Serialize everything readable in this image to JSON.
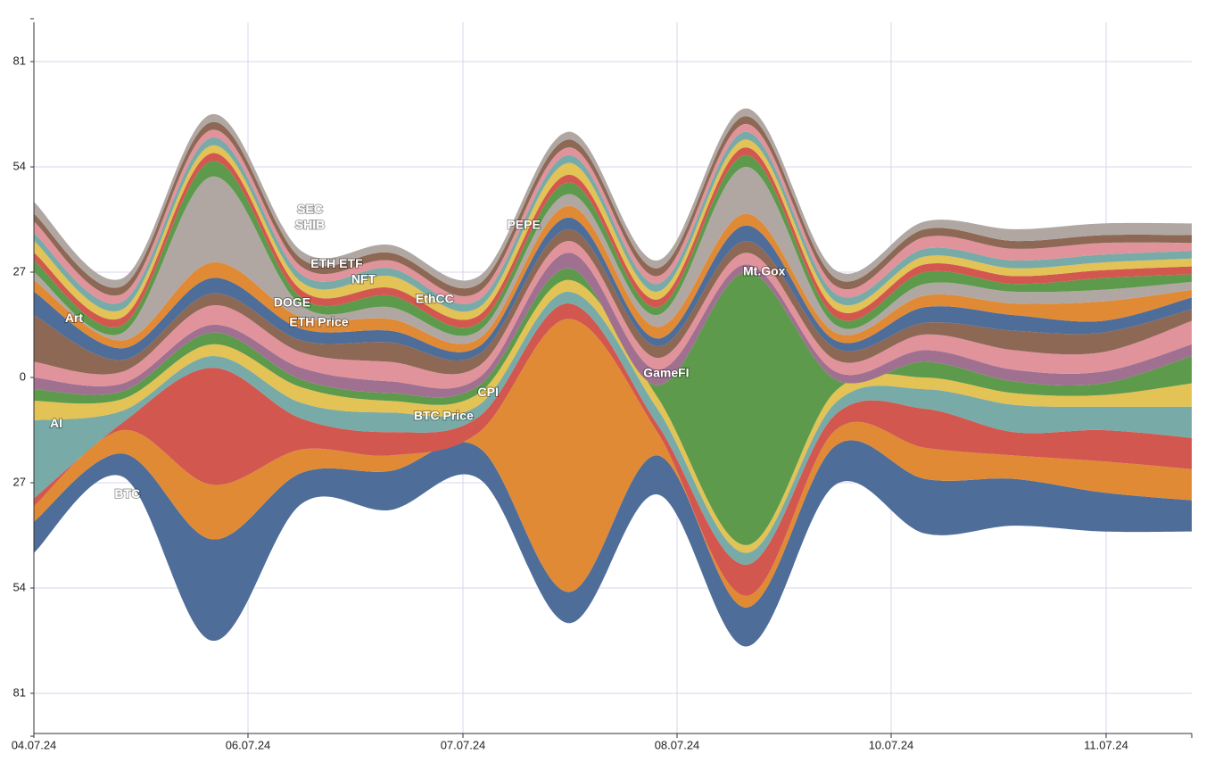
{
  "chart_data": {
    "type": "area",
    "subtype": "streamgraph",
    "title": "",
    "xlabel": "",
    "ylabel": "",
    "x": [
      "04.07.24 00:00",
      "04.07.24 12:00",
      "05.07.24 00:00",
      "05.07.24 12:00",
      "06.07.24 00:00",
      "06.07.24 12:00",
      "07.07.24 00:00",
      "07.07.24 12:00",
      "08.07.24 00:00",
      "08.07.24 12:00",
      "10.07.24 00:00",
      "10.07.24 12:00",
      "11.07.24 00:00",
      "11.07.24 12:00"
    ],
    "x_ticks": [
      "04.07.24",
      "06.07.24",
      "07.07.24",
      "08.07.24",
      "10.07.24",
      "11.07.24"
    ],
    "y_ticks": [
      81,
      54,
      27,
      0,
      27,
      54,
      81
    ],
    "ylim": [
      -92,
      92
    ],
    "grid": true,
    "series": [
      {
        "name": "BTC",
        "color": "#4e6d99",
        "values": [
          8,
          6,
          26,
          8,
          10,
          8,
          8,
          10,
          10,
          10,
          14,
          12,
          10,
          8
        ]
      },
      {
        "name": "BTC Price",
        "color": "#e08a36",
        "values": [
          4,
          6,
          14,
          6,
          4,
          4,
          70,
          6,
          3,
          4,
          8,
          6,
          8,
          8
        ]
      },
      {
        "name": "",
        "color": "#d2574f",
        "values": [
          2,
          2,
          30,
          8,
          6,
          4,
          4,
          2,
          8,
          4,
          10,
          6,
          8,
          8
        ]
      },
      {
        "name": "AI",
        "color": "#78aba7",
        "values": [
          20,
          3,
          3,
          4,
          5,
          3,
          3,
          4,
          3,
          3,
          5,
          7,
          6,
          8
        ]
      },
      {
        "name": "",
        "color": "#e3c256",
        "values": [
          5,
          3,
          3,
          4,
          3,
          3,
          3,
          3,
          2,
          3,
          3,
          3,
          3,
          6
        ]
      },
      {
        "name": "",
        "color": "#5d9a4b",
        "values": [
          3,
          2,
          3,
          2,
          2,
          2,
          3,
          3,
          70,
          3,
          4,
          3,
          3,
          7
        ]
      },
      {
        "name": "",
        "color": "#a07090",
        "values": [
          3,
          2,
          2,
          3,
          3,
          2,
          4,
          4,
          2,
          2,
          3,
          3,
          3,
          3
        ]
      },
      {
        "name": "",
        "color": "#e0939b",
        "values": [
          4,
          3,
          5,
          4,
          5,
          3,
          3,
          3,
          3,
          3,
          4,
          5,
          5,
          6
        ]
      },
      {
        "name": "Art",
        "color": "#8c6855",
        "values": [
          12,
          3,
          3,
          3,
          5,
          3,
          3,
          3,
          3,
          3,
          3,
          5,
          5,
          3
        ]
      },
      {
        "name": "",
        "color": "#4e6d99",
        "values": [
          6,
          3,
          4,
          3,
          3,
          2,
          3,
          2,
          4,
          2,
          4,
          4,
          3,
          3
        ]
      },
      {
        "name": "",
        "color": "#e08a36",
        "values": [
          3,
          2,
          4,
          3,
          3,
          2,
          3,
          3,
          3,
          2,
          3,
          3,
          5,
          2
        ]
      },
      {
        "name": "",
        "color": "#b0a7a3",
        "values": [
          2,
          2,
          22,
          3,
          3,
          2,
          3,
          3,
          12,
          2,
          3,
          3,
          3,
          2
        ]
      },
      {
        "name": "",
        "color": "#5d9a4b",
        "values": [
          3,
          2,
          4,
          2,
          3,
          2,
          3,
          2,
          3,
          2,
          3,
          2,
          3,
          2
        ]
      },
      {
        "name": "",
        "color": "#d2574f",
        "values": [
          2,
          2,
          2,
          2,
          2,
          2,
          2,
          2,
          2,
          2,
          2,
          2,
          2,
          2
        ]
      },
      {
        "name": "",
        "color": "#e3c256",
        "values": [
          3,
          2,
          2,
          2,
          3,
          2,
          3,
          2,
          2,
          2,
          2,
          2,
          2,
          2
        ]
      },
      {
        "name": "",
        "color": "#78aba7",
        "values": [
          2,
          2,
          2,
          2,
          2,
          2,
          2,
          2,
          2,
          2,
          2,
          2,
          2,
          2
        ]
      },
      {
        "name": "",
        "color": "#e0939b",
        "values": [
          3,
          2,
          2,
          2,
          2,
          2,
          2,
          2,
          2,
          2,
          3,
          3,
          3,
          2
        ]
      },
      {
        "name": "",
        "color": "#8c6855",
        "values": [
          2,
          2,
          2,
          2,
          2,
          2,
          2,
          2,
          2,
          2,
          2,
          2,
          2,
          2
        ]
      },
      {
        "name": "",
        "color": "#b0a7a3",
        "values": [
          3,
          2,
          2,
          2,
          2,
          2,
          2,
          2,
          2,
          2,
          2,
          3,
          3,
          3
        ]
      }
    ],
    "annotations": [
      {
        "text": "BTC",
        "x": 1.05,
        "y": -30
      },
      {
        "text": "AI",
        "x": 0.25,
        "y": -12
      },
      {
        "text": "Art",
        "x": 0.45,
        "y": 15
      },
      {
        "text": "SEC",
        "x": 3.1,
        "y": 43
      },
      {
        "text": "SHIB",
        "x": 3.1,
        "y": 39
      },
      {
        "text": "ETH ETF",
        "x": 3.4,
        "y": 29
      },
      {
        "text": "NFT",
        "x": 3.7,
        "y": 25
      },
      {
        "text": "DOGE",
        "x": 2.9,
        "y": 19
      },
      {
        "text": "ETH Price",
        "x": 3.2,
        "y": 14
      },
      {
        "text": "EthCC",
        "x": 4.5,
        "y": 20
      },
      {
        "text": "CPI",
        "x": 5.1,
        "y": -4
      },
      {
        "text": "BTC Price",
        "x": 4.6,
        "y": -10
      },
      {
        "text": "PEPE",
        "x": 5.5,
        "y": 39
      },
      {
        "text": "GameFI",
        "x": 7.1,
        "y": 1
      },
      {
        "text": "Mt.Gox",
        "x": 8.2,
        "y": 27
      }
    ]
  }
}
